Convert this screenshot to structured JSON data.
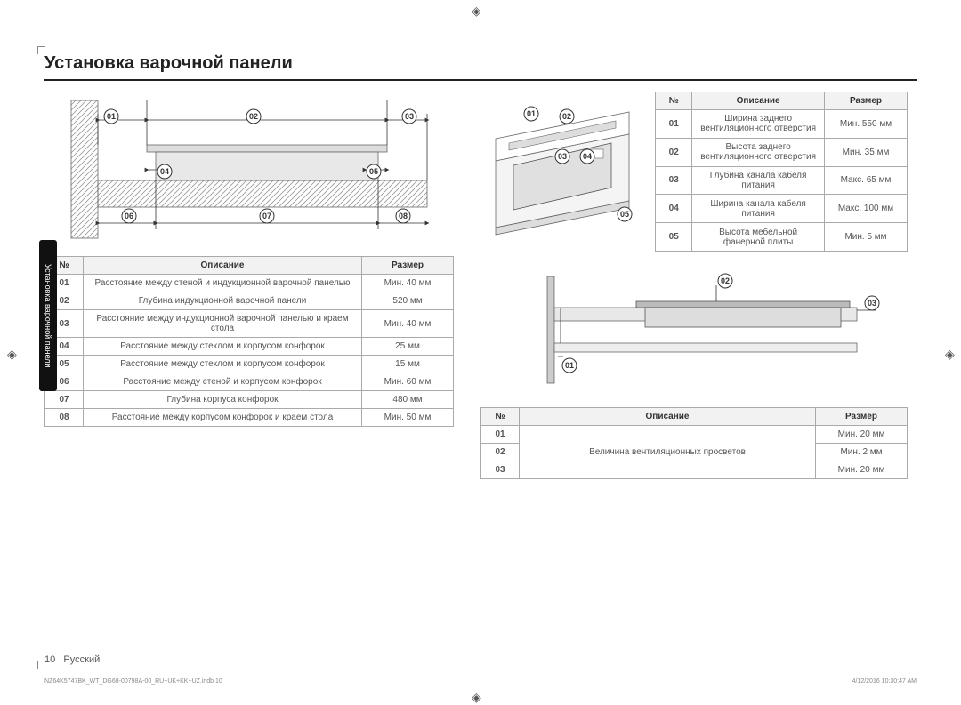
{
  "title": "Установка варочной панели",
  "side_tab": "Установка варочной панели",
  "footer": {
    "page": "10",
    "lang": "Русский",
    "file": "NZ64K5747BK_WT_DG68-00798A-00_RU+UK+KK+UZ.indb   10",
    "date": "4/12/2016   10:30:47 AM"
  },
  "table1": {
    "headers": [
      "№",
      "Описание",
      "Размер"
    ],
    "rows": [
      [
        "01",
        "Расстояние между стеной и индукционной варочной панелью",
        "Мин. 40 мм"
      ],
      [
        "02",
        "Глубина индукционной варочной панели",
        "520 мм"
      ],
      [
        "03",
        "Расстояние между индукционной варочной панелью и краем стола",
        "Мин. 40 мм"
      ],
      [
        "04",
        "Расстояние между стеклом и корпусом конфорок",
        "25 мм"
      ],
      [
        "05",
        "Расстояние между стеклом и корпусом конфорок",
        "15 мм"
      ],
      [
        "06",
        "Расстояние между стеной и корпусом конфорок",
        "Мин. 60 мм"
      ],
      [
        "07",
        "Глубина корпуса конфорок",
        "480 мм"
      ],
      [
        "08",
        "Расстояние между корпусом конфорок и краем стола",
        "Мин. 50 мм"
      ]
    ]
  },
  "table2": {
    "headers": [
      "№",
      "Описание",
      "Размер"
    ],
    "rows": [
      [
        "01",
        "Ширина заднего вентиляционного отверстия",
        "Мин. 550 мм"
      ],
      [
        "02",
        "Высота заднего вентиляционного отверстия",
        "Мин. 35 мм"
      ],
      [
        "03",
        "Глубина канала кабеля питания",
        "Макс. 65 мм"
      ],
      [
        "04",
        "Ширина канала кабеля питания",
        "Макс. 100 мм"
      ],
      [
        "05",
        "Высота мебельной фанерной плиты",
        "Мин. 5 мм"
      ]
    ]
  },
  "table3": {
    "headers": [
      "№",
      "Описание",
      "Размер"
    ],
    "rows": [
      [
        "01",
        "",
        "Мин. 20 мм"
      ],
      [
        "02",
        "Величина вентиляционных просветов",
        "Мин. 2 мм"
      ],
      [
        "03",
        "",
        "Мин. 20 мм"
      ]
    ],
    "desc_rowspan": 3
  },
  "diagram1_labels": [
    "01",
    "02",
    "03",
    "04",
    "05",
    "06",
    "07",
    "08"
  ],
  "diagram2_labels": [
    "01",
    "02",
    "03",
    "04",
    "05"
  ],
  "diagram3_labels": [
    "01",
    "02",
    "03"
  ]
}
